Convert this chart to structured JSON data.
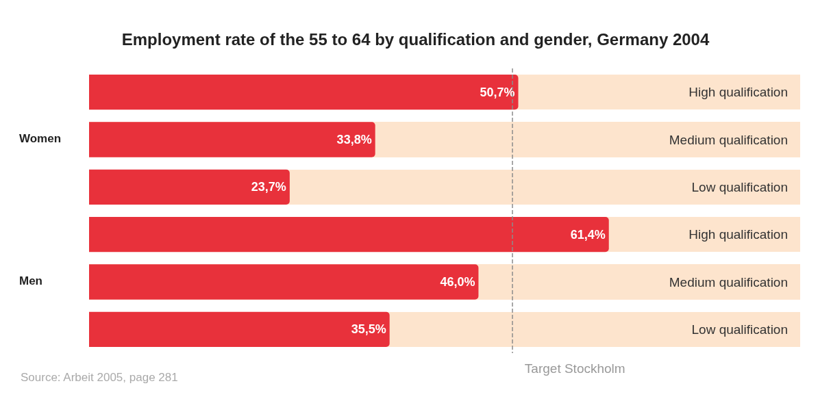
{
  "chart_data": {
    "type": "bar",
    "orientation": "horizontal",
    "title": "Employment rate of the 55 to 64 by qualification and gender, Germany 2004",
    "categories": [
      "High qualification",
      "Medium qualification",
      "Low qualification",
      "High qualification",
      "Medium qualification",
      "Low qualification"
    ],
    "values": [
      50.7,
      33.8,
      23.7,
      61.4,
      46.0,
      35.5
    ],
    "value_labels": [
      "50,7%",
      "33,8%",
      "23,7%",
      "61,4%",
      "46,0%",
      "35,5%"
    ],
    "color": "#e8313b",
    "xlim": [
      0,
      84
    ],
    "tick_labels": "y",
    "grid": false,
    "ref_lines": [
      {
        "axis": "x",
        "value": 50,
        "label": "Target Stockholm",
        "color": "#8c8c8c",
        "line_style": "dashed"
      }
    ],
    "annotations": [
      "Women",
      "Men",
      "Source: Arbeit 2005, page 281"
    ]
  }
}
